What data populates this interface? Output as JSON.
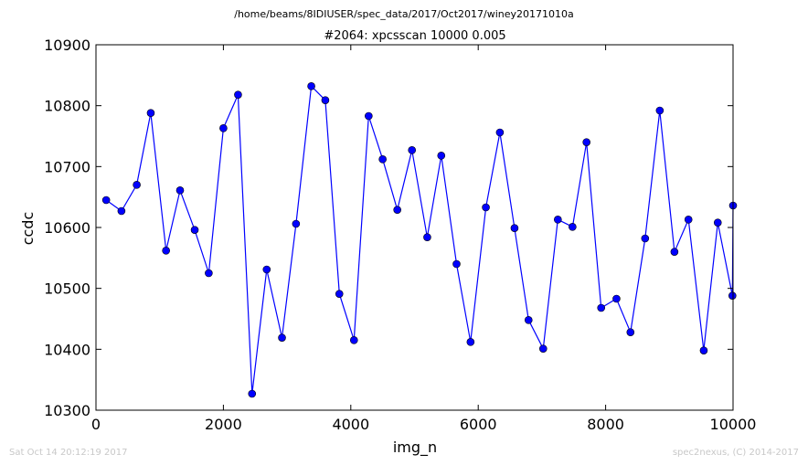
{
  "suptitle": "/home/beams/8IDIUSER/spec_data/2017/Oct2017/winey20171010a",
  "footer": {
    "timestamp": "Sat Oct 14 20:12:19 2017",
    "credit": "spec2nexus, (C) 2014-2017"
  },
  "colors": {
    "series": "#0000ff",
    "marker": "#0000ff"
  },
  "chart_data": {
    "type": "line",
    "title": "#2064: xpcsscan 10000 0.005",
    "xlabel": "img_n",
    "ylabel": "ccdc",
    "xlim": [
      0,
      10000
    ],
    "ylim": [
      10300,
      10900
    ],
    "xticks": [
      0,
      2000,
      4000,
      6000,
      8000,
      10000
    ],
    "yticks": [
      10300,
      10400,
      10500,
      10600,
      10700,
      10800,
      10900
    ],
    "grid": false,
    "markers": true,
    "series": [
      {
        "x": [
          160,
          400,
          640,
          860,
          1100,
          1320,
          1550,
          1770,
          2000,
          2230,
          2450,
          2680,
          2920,
          3140,
          3380,
          3600,
          3820,
          4050,
          4280,
          4500,
          4730,
          4960,
          5200,
          5420,
          5660,
          5880,
          6120,
          6340,
          6570,
          6790,
          7020,
          7250,
          7480,
          7700,
          7930,
          8170,
          8390,
          8620,
          8850,
          9080,
          9300,
          9540,
          9760,
          9990,
          10000
        ],
        "values": [
          10645,
          10627,
          10670,
          10788,
          10562,
          10661,
          10596,
          10525,
          10763,
          10818,
          10327,
          10531,
          10419,
          10606,
          10832,
          10809,
          10491,
          10415,
          10783,
          10712,
          10629,
          10727,
          10584,
          10718,
          10540,
          10412,
          10633,
          10756,
          10599,
          10448,
          10401,
          10613,
          10601,
          10740,
          10468,
          10483,
          10428,
          10582,
          10792,
          10560,
          10613,
          10398,
          10608,
          10488,
          10636
        ]
      }
    ]
  }
}
